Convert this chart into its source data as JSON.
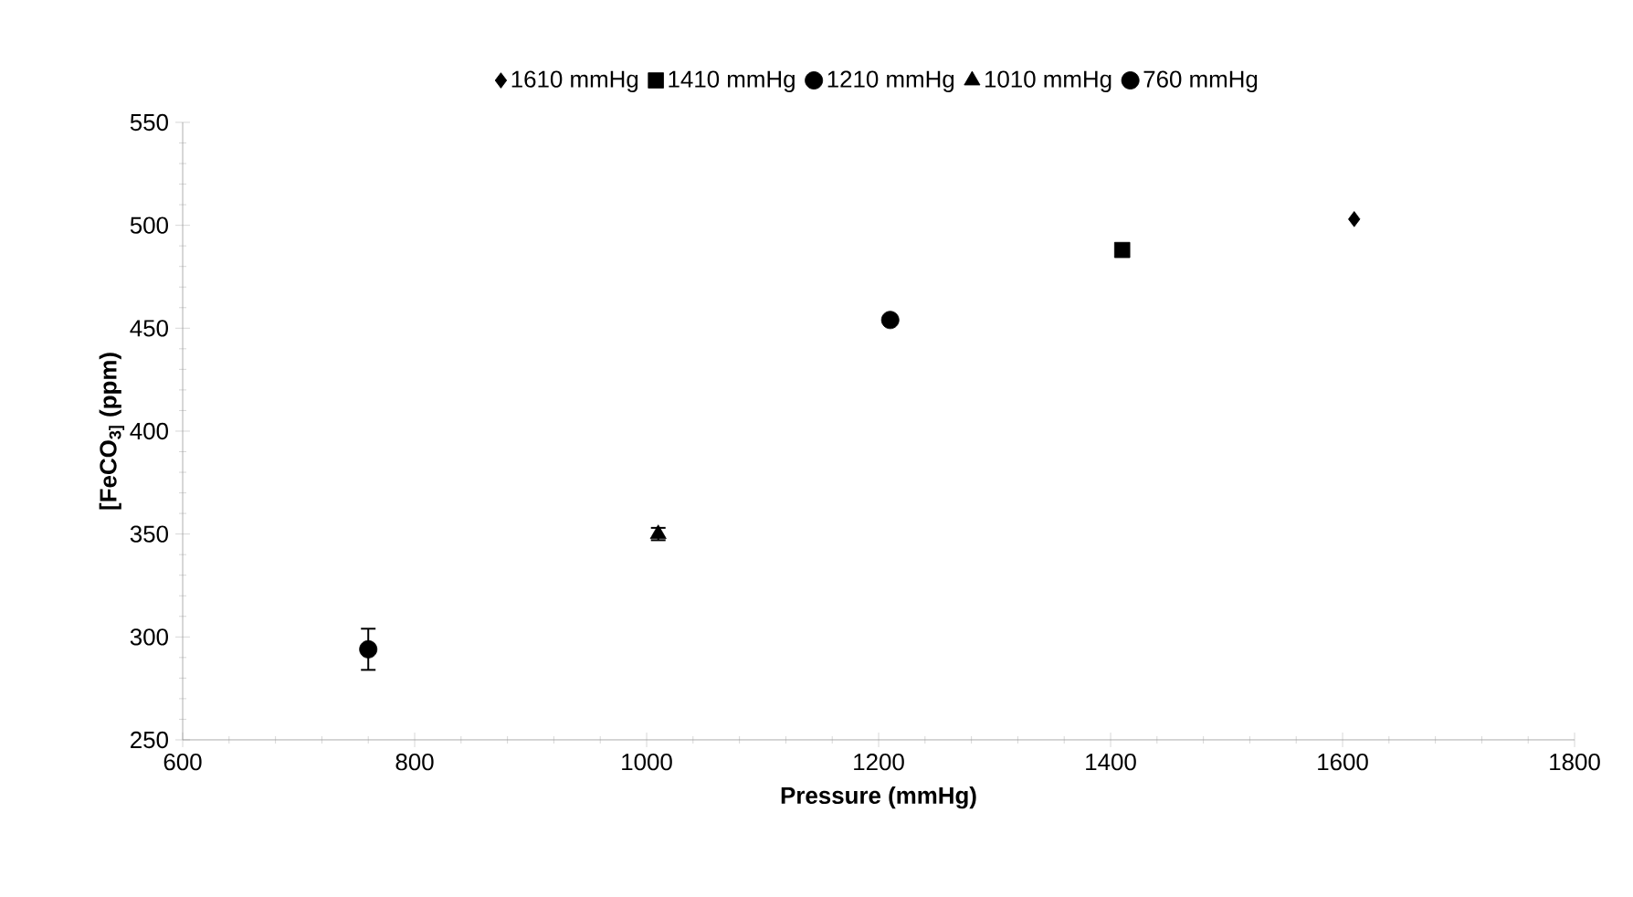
{
  "chart_data": {
    "type": "scatter",
    "xlabel": "Pressure (mmHg)",
    "ylabel": "[FeCO$_{3]}$ (ppm)",
    "xlim": [
      600,
      1800
    ],
    "xticks": [
      600,
      800,
      1000,
      1200,
      1400,
      1600,
      1800
    ],
    "ylim": [
      250,
      550
    ],
    "yticks": [
      250,
      300,
      350,
      400,
      450,
      500,
      550
    ],
    "grid": false,
    "legend": "top",
    "series": [
      {
        "name": "1610 mmHg",
        "color": "#000000",
        "marker": "diamond",
        "x": [
          1610
        ],
        "values": [
          503
        ]
      },
      {
        "name": "1410 mmHg",
        "color": "#000000",
        "marker": "square",
        "x": [
          1410
        ],
        "values": [
          488
        ]
      },
      {
        "name": "1210 mmHg",
        "color": "#000000",
        "marker": "circle",
        "x": [
          1210
        ],
        "values": [
          454
        ]
      },
      {
        "name": "1010 mmHg",
        "color": "#000000",
        "marker": "triangle",
        "x": [
          1010
        ],
        "values": [
          350
        ],
        "errors": [
          3
        ]
      },
      {
        "name": "760 mmHg",
        "color": "#000000",
        "marker": "circle",
        "x": [
          760
        ],
        "values": [
          294
        ],
        "errors": [
          10
        ]
      }
    ]
  }
}
